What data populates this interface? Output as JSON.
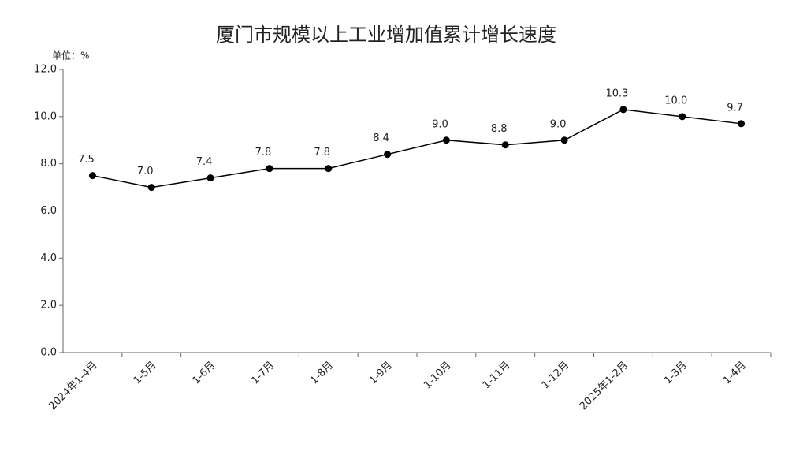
{
  "chart_data": {
    "type": "line",
    "title": "厦门市规模以上工业增加值累计增长速度",
    "unit_label": "单位：%",
    "categories": [
      "2024年1-4月",
      "1-5月",
      "1-6月",
      "1-7月",
      "1-8月",
      "1-9月",
      "1-10月",
      "1-11月",
      "1-12月",
      "2025年1-2月",
      "1-3月",
      "1-4月"
    ],
    "series": [
      {
        "name": "增长速度",
        "color": "#000000",
        "values": [
          7.5,
          7.0,
          7.4,
          7.8,
          7.8,
          8.4,
          9.0,
          8.8,
          9.0,
          10.3,
          10.0,
          9.7
        ],
        "value_labels": [
          "7.5",
          "7.0",
          "7.4",
          "7.8",
          "7.8",
          "8.4",
          "9.0",
          "8.8",
          "9.0",
          "10.3",
          "10.0",
          "9.7"
        ]
      }
    ],
    "ylim": [
      0,
      12
    ],
    "yticks": [
      {
        "value": 0,
        "label": "0.0"
      },
      {
        "value": 2,
        "label": "2.0"
      },
      {
        "value": 4,
        "label": "4.0"
      },
      {
        "value": 6,
        "label": "6.0"
      },
      {
        "value": 8,
        "label": "8.0"
      },
      {
        "value": 10,
        "label": "10.0"
      },
      {
        "value": 12,
        "label": "12.0"
      }
    ],
    "grid": false
  }
}
